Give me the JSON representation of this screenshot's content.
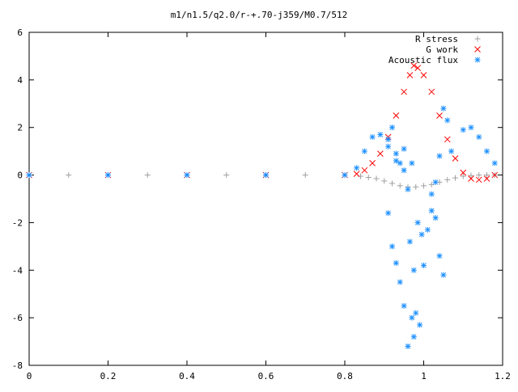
{
  "chart_data": {
    "type": "scatter",
    "title": "m1/n1.5/q2.0/r-+.70-j359/M0.7/512",
    "xlabel": "",
    "ylabel": "",
    "xlim": [
      0,
      1.2
    ],
    "ylim": [
      -8,
      6
    ],
    "x_ticks": [
      0,
      0.2,
      0.4,
      0.6,
      0.8,
      1,
      1.2
    ],
    "x_tick_labels": [
      "0",
      "0.2",
      "0.4",
      "0.6",
      "0.8",
      "1",
      "1.2"
    ],
    "y_ticks": [
      -8,
      -6,
      -4,
      -2,
      0,
      2,
      4,
      6
    ],
    "y_tick_labels": [
      "-8",
      "-6",
      "-4",
      "-2",
      "0",
      "2",
      "4",
      "6"
    ],
    "legend_position": "top-right",
    "grid": false,
    "series": [
      {
        "name": "R stress",
        "marker": "plus",
        "color": "#a0a0a0",
        "points": [
          [
            0.0,
            0
          ],
          [
            0.1,
            0
          ],
          [
            0.2,
            0
          ],
          [
            0.3,
            0
          ],
          [
            0.4,
            0
          ],
          [
            0.5,
            0
          ],
          [
            0.6,
            0
          ],
          [
            0.7,
            0
          ],
          [
            0.8,
            0
          ],
          [
            0.84,
            -0.05
          ],
          [
            0.86,
            -0.1
          ],
          [
            0.88,
            -0.15
          ],
          [
            0.9,
            -0.25
          ],
          [
            0.92,
            -0.35
          ],
          [
            0.94,
            -0.45
          ],
          [
            0.96,
            -0.5
          ],
          [
            0.98,
            -0.5
          ],
          [
            1.0,
            -0.45
          ],
          [
            1.02,
            -0.4
          ],
          [
            1.04,
            -0.3
          ],
          [
            1.06,
            -0.2
          ],
          [
            1.08,
            -0.12
          ],
          [
            1.1,
            -0.05
          ],
          [
            1.12,
            -0.02
          ],
          [
            1.14,
            0
          ],
          [
            1.16,
            0
          ],
          [
            1.18,
            0
          ]
        ]
      },
      {
        "name": "G work",
        "marker": "cross",
        "color": "#ff0000",
        "points": [
          [
            0.0,
            0
          ],
          [
            0.2,
            0
          ],
          [
            0.4,
            0
          ],
          [
            0.6,
            0
          ],
          [
            0.8,
            0
          ],
          [
            0.83,
            0.05
          ],
          [
            0.85,
            0.2
          ],
          [
            0.87,
            0.5
          ],
          [
            0.89,
            0.9
          ],
          [
            0.91,
            1.6
          ],
          [
            0.93,
            2.5
          ],
          [
            0.95,
            3.5
          ],
          [
            0.965,
            4.2
          ],
          [
            0.975,
            4.6
          ],
          [
            0.985,
            4.5
          ],
          [
            1.0,
            4.2
          ],
          [
            1.02,
            3.5
          ],
          [
            1.04,
            2.5
          ],
          [
            1.06,
            1.5
          ],
          [
            1.08,
            0.7
          ],
          [
            1.1,
            0.1
          ],
          [
            1.12,
            -0.15
          ],
          [
            1.14,
            -0.2
          ],
          [
            1.16,
            -0.15
          ],
          [
            1.18,
            0
          ]
        ]
      },
      {
        "name": "Acoustic flux",
        "marker": "star",
        "color": "#1e90ff",
        "points": [
          [
            0.0,
            0
          ],
          [
            0.2,
            0
          ],
          [
            0.4,
            0
          ],
          [
            0.6,
            0
          ],
          [
            0.8,
            0
          ],
          [
            0.83,
            0.3
          ],
          [
            0.85,
            1.0
          ],
          [
            0.87,
            1.6
          ],
          [
            0.89,
            1.7
          ],
          [
            0.91,
            1.2
          ],
          [
            0.93,
            0.6
          ],
          [
            0.95,
            0.2
          ],
          [
            0.97,
            0.5
          ],
          [
            1.07,
            1.0
          ],
          [
            1.1,
            1.9
          ],
          [
            1.12,
            2.0
          ],
          [
            1.14,
            1.6
          ],
          [
            1.16,
            1.0
          ],
          [
            1.18,
            0.5
          ],
          [
            0.91,
            1.5
          ],
          [
            0.92,
            2.0
          ],
          [
            0.93,
            0.9
          ],
          [
            0.94,
            0.5
          ],
          [
            0.95,
            1.1
          ],
          [
            0.96,
            -0.6
          ],
          [
            0.91,
            -1.6
          ],
          [
            0.92,
            -3.0
          ],
          [
            0.93,
            -3.7
          ],
          [
            0.94,
            -4.5
          ],
          [
            0.95,
            -5.5
          ],
          [
            0.96,
            -7.2
          ],
          [
            0.97,
            -6.0
          ],
          [
            0.975,
            -6.8
          ],
          [
            0.98,
            -5.8
          ],
          [
            0.99,
            -6.3
          ],
          [
            1.0,
            -3.8
          ],
          [
            1.01,
            -2.3
          ],
          [
            1.02,
            -1.5
          ],
          [
            1.03,
            -1.8
          ],
          [
            1.04,
            -3.4
          ],
          [
            1.05,
            -4.2
          ],
          [
            1.02,
            -0.8
          ],
          [
            1.03,
            -0.3
          ],
          [
            1.04,
            0.8
          ],
          [
            1.05,
            2.8
          ],
          [
            1.06,
            2.3
          ],
          [
            0.965,
            -2.8
          ],
          [
            0.975,
            -4.0
          ],
          [
            0.985,
            -2.0
          ],
          [
            0.995,
            -2.5
          ]
        ]
      }
    ]
  }
}
